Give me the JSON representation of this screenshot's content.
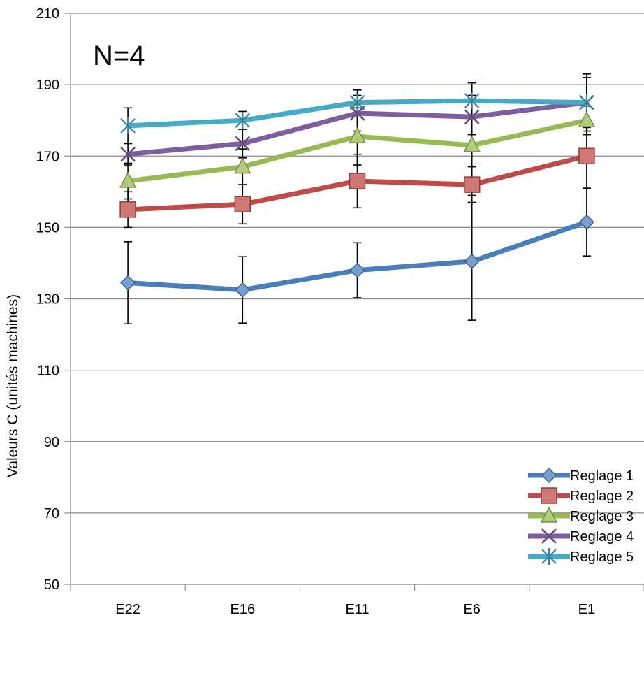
{
  "chart_data": {
    "type": "line",
    "title": "",
    "annotation": "N=4",
    "xlabel": "",
    "ylabel": "Valeurs C (unités machines)",
    "categories": [
      "E22",
      "E16",
      "E11",
      "E6",
      "E1"
    ],
    "ylim": [
      50,
      210
    ],
    "yticks": [
      50,
      70,
      90,
      110,
      130,
      150,
      170,
      190,
      210
    ],
    "grid": true,
    "legend": "bottom-right",
    "series": [
      {
        "name": "Reglage 1",
        "color": "#4a7ebb",
        "marker": "diamond",
        "values": [
          134.5,
          132.5,
          138,
          140.5,
          151.5
        ],
        "err": [
          11.5,
          9.3,
          7.7,
          16.5,
          9.5
        ]
      },
      {
        "name": "Reglage 2",
        "color": "#be4b48",
        "marker": "square",
        "values": [
          155,
          156.5,
          163,
          162,
          170
        ],
        "err": [
          5,
          5.5,
          7.5,
          5,
          9
        ]
      },
      {
        "name": "Reglage 3",
        "color": "#98b954",
        "marker": "triangle",
        "values": [
          163,
          167,
          175.5,
          173,
          180
        ],
        "err": [
          5,
          5,
          8,
          14,
          4
        ]
      },
      {
        "name": "Reglage 4",
        "color": "#7d5fa0",
        "marker": "x",
        "values": [
          170.5,
          173.5,
          182,
          181,
          185
        ],
        "err": [
          3,
          4,
          5,
          5,
          7
        ]
      },
      {
        "name": "Reglage 5",
        "color": "#46aac5",
        "marker": "star",
        "values": [
          178.5,
          180,
          185,
          185.5,
          185
        ],
        "err": [
          5,
          2.5,
          3.5,
          5,
          8
        ]
      }
    ]
  }
}
